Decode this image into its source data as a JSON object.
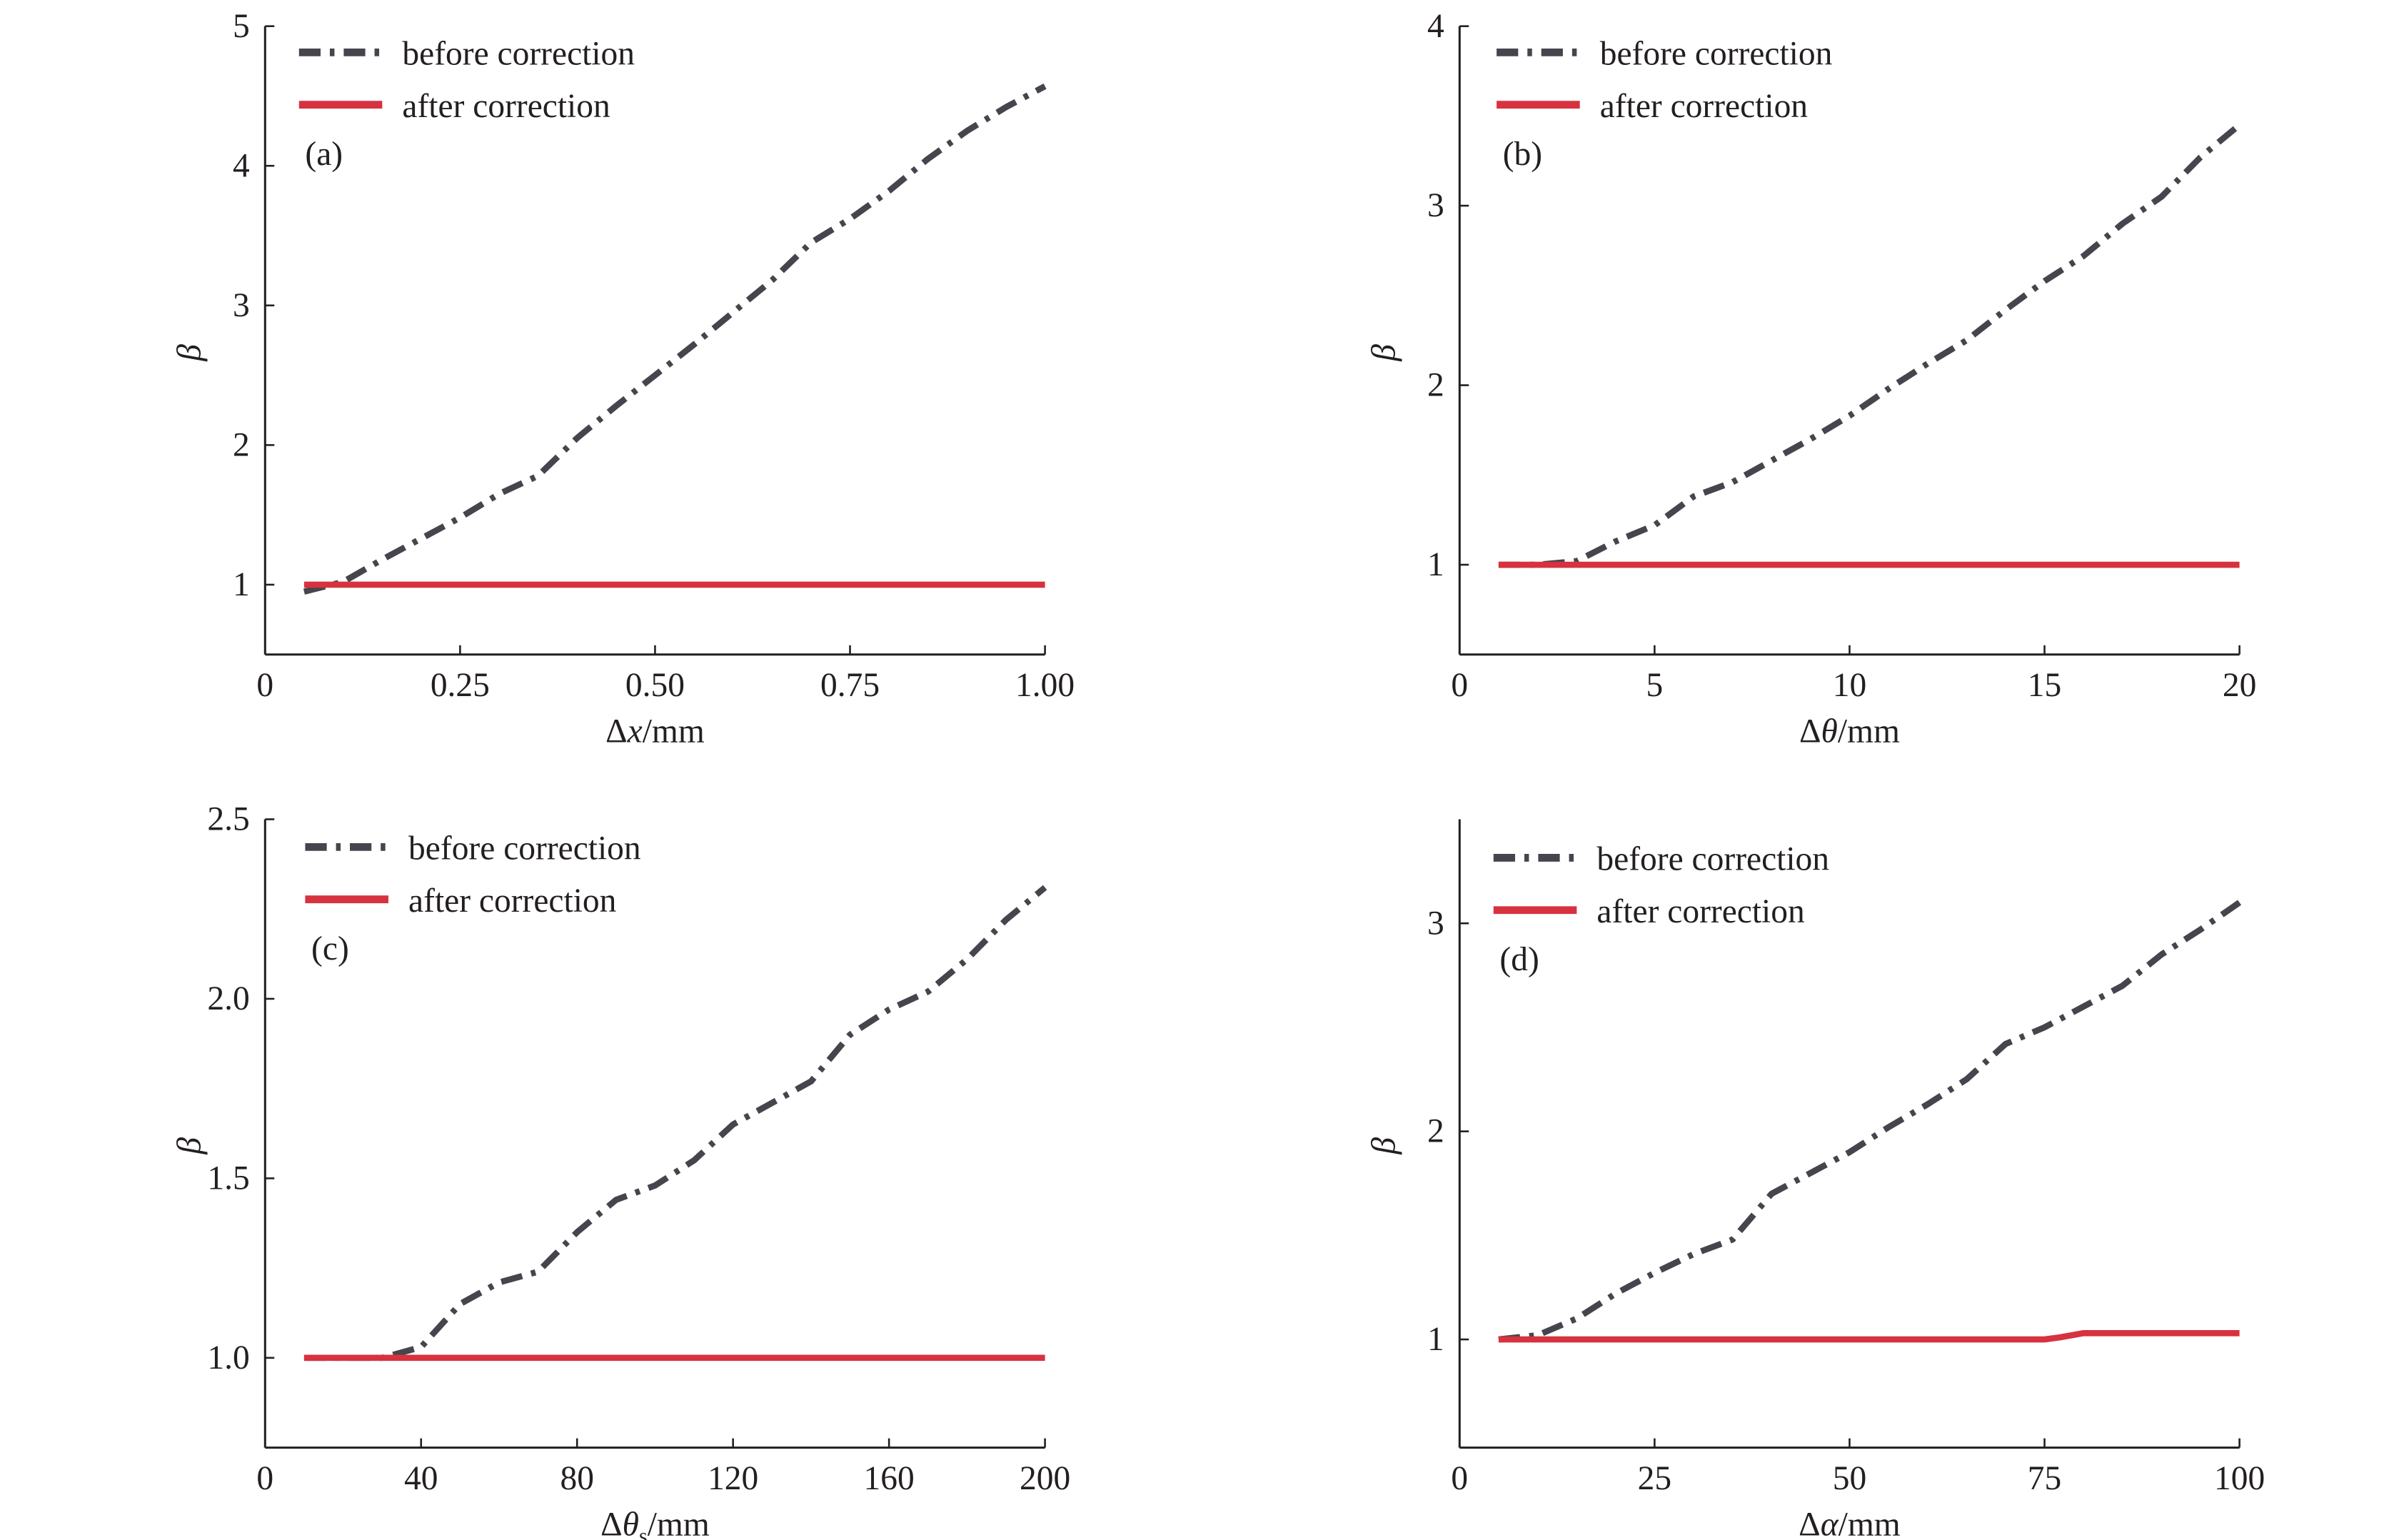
{
  "colors": {
    "before": "#45454d",
    "after": "#d7323f",
    "axis": "#231f20"
  },
  "legend": {
    "before": "before correction",
    "after": "after correction"
  },
  "chart_data": [
    {
      "type": "line",
      "panel_label": "(a)",
      "ylabel": "β",
      "xlabel": {
        "pre": "Δ",
        "var": "x",
        "sub": "",
        "post": "/mm"
      },
      "xlim": [
        0,
        1.0
      ],
      "ylim": [
        0.5,
        5
      ],
      "xticks": [
        0,
        0.25,
        0.5,
        0.75,
        1.0
      ],
      "xtick_labels": [
        "0",
        "0.25",
        "0.50",
        "0.75",
        "1.00"
      ],
      "yticks": [
        1,
        2,
        3,
        4,
        5
      ],
      "ytick_labels": [
        "1",
        "2",
        "3",
        "4",
        "5"
      ],
      "series": [
        {
          "name": "before correction",
          "x": [
            0.05,
            0.1,
            0.15,
            0.2,
            0.25,
            0.3,
            0.35,
            0.4,
            0.45,
            0.5,
            0.55,
            0.6,
            0.65,
            0.7,
            0.75,
            0.8,
            0.85,
            0.9,
            0.95,
            1.0
          ],
          "y": [
            0.95,
            1.02,
            1.18,
            1.33,
            1.48,
            1.65,
            1.78,
            2.05,
            2.28,
            2.5,
            2.72,
            2.95,
            3.18,
            3.45,
            3.62,
            3.82,
            4.05,
            4.25,
            4.42,
            4.57
          ]
        },
        {
          "name": "after correction",
          "x": [
            0.05,
            1.0
          ],
          "y": [
            1,
            1
          ]
        }
      ]
    },
    {
      "type": "line",
      "panel_label": "(b)",
      "ylabel": "β",
      "xlabel": {
        "pre": "Δ",
        "var": "θ",
        "sub": "",
        "post": "/mm"
      },
      "xlim": [
        0,
        20
      ],
      "ylim": [
        0.5,
        4
      ],
      "xticks": [
        0,
        5,
        10,
        15,
        20
      ],
      "xtick_labels": [
        "0",
        "5",
        "10",
        "15",
        "20"
      ],
      "yticks": [
        1,
        2,
        3,
        4
      ],
      "ytick_labels": [
        "1",
        "2",
        "3",
        "4"
      ],
      "series": [
        {
          "name": "before correction",
          "x": [
            1,
            2,
            3,
            4,
            5,
            6,
            7,
            8,
            9,
            10,
            11,
            12,
            13,
            14,
            15,
            16,
            17,
            18,
            19,
            20
          ],
          "y": [
            1,
            1,
            1.02,
            1.13,
            1.22,
            1.38,
            1.46,
            1.58,
            1.7,
            1.83,
            1.98,
            2.12,
            2.25,
            2.42,
            2.58,
            2.72,
            2.9,
            3.05,
            3.27,
            3.45
          ]
        },
        {
          "name": "after correction",
          "x": [
            1,
            20
          ],
          "y": [
            1,
            1
          ]
        }
      ]
    },
    {
      "type": "line",
      "panel_label": "(c)",
      "ylabel": "β",
      "xlabel": {
        "pre": "Δ",
        "var": "θ",
        "sub": "s",
        "post": "/mm"
      },
      "xlim": [
        0,
        200
      ],
      "ylim": [
        0.75,
        2.5
      ],
      "xticks": [
        0,
        40,
        80,
        120,
        160,
        200
      ],
      "xtick_labels": [
        "0",
        "40",
        "80",
        "120",
        "160",
        "200"
      ],
      "yticks": [
        1.0,
        1.5,
        2.0,
        2.5
      ],
      "ytick_labels": [
        "1.0",
        "1.5",
        "2.0",
        "2.5"
      ],
      "series": [
        {
          "name": "before correction",
          "x": [
            10,
            20,
            30,
            40,
            50,
            60,
            70,
            80,
            90,
            100,
            110,
            120,
            130,
            140,
            150,
            160,
            170,
            180,
            190,
            200
          ],
          "y": [
            1,
            1,
            1,
            1.03,
            1.15,
            1.21,
            1.24,
            1.35,
            1.44,
            1.48,
            1.55,
            1.65,
            1.71,
            1.77,
            1.9,
            1.97,
            2.02,
            2.11,
            2.22,
            2.31
          ]
        },
        {
          "name": "after correction",
          "x": [
            10,
            200
          ],
          "y": [
            1,
            1
          ]
        }
      ]
    },
    {
      "type": "line",
      "panel_label": "(d)",
      "ylabel": "β",
      "xlabel": {
        "pre": "Δ",
        "var": "α",
        "sub": "",
        "post": "/mm"
      },
      "xlim": [
        0,
        100
      ],
      "ylim": [
        0.48,
        3.5
      ],
      "xticks": [
        0,
        25,
        50,
        75,
        100
      ],
      "xtick_labels": [
        "0",
        "25",
        "50",
        "75",
        "100"
      ],
      "yticks": [
        1,
        2,
        3
      ],
      "ytick_labels": [
        "1",
        "2",
        "3"
      ],
      "series": [
        {
          "name": "before correction",
          "x": [
            5,
            10,
            15,
            20,
            25,
            30,
            35,
            40,
            45,
            50,
            55,
            60,
            65,
            70,
            75,
            80,
            85,
            90,
            95,
            100
          ],
          "y": [
            1,
            1.02,
            1.1,
            1.22,
            1.32,
            1.41,
            1.48,
            1.7,
            1.8,
            1.9,
            2.02,
            2.13,
            2.25,
            2.42,
            2.5,
            2.6,
            2.7,
            2.85,
            2.97,
            3.1
          ]
        },
        {
          "name": "after correction",
          "x": [
            5,
            75,
            77,
            80,
            100
          ],
          "y": [
            1,
            1,
            1.01,
            1.03,
            1.03
          ]
        }
      ]
    }
  ]
}
